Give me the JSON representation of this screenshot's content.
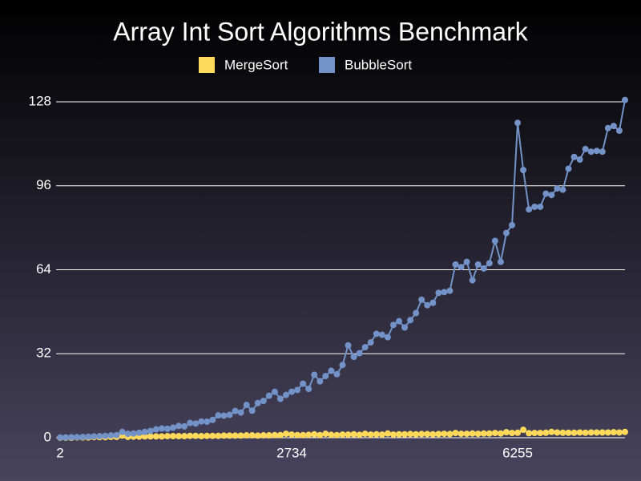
{
  "chart_data": {
    "type": "line",
    "title": "Array Int Sort Algorithms Benchmark",
    "categories": [
      "2",
      null,
      null,
      null,
      null,
      null,
      null,
      null,
      null,
      null,
      null,
      null,
      null,
      null,
      null,
      null,
      null,
      null,
      null,
      null,
      null,
      null,
      null,
      null,
      null,
      null,
      null,
      null,
      null,
      null,
      null,
      null,
      null,
      null,
      null,
      null,
      null,
      null,
      null,
      null,
      null,
      "2734",
      null,
      null,
      null,
      null,
      null,
      null,
      null,
      null,
      null,
      null,
      null,
      null,
      null,
      null,
      null,
      null,
      null,
      null,
      null,
      null,
      null,
      null,
      null,
      null,
      null,
      null,
      null,
      null,
      null,
      null,
      null,
      null,
      null,
      null,
      null,
      null,
      null,
      null,
      null,
      "6255",
      null,
      null,
      null,
      null,
      null,
      null,
      null,
      null,
      null,
      null,
      null,
      null,
      null,
      null,
      null,
      null,
      null,
      null,
      null
    ],
    "series": [
      {
        "name": "MergeSort",
        "color": "#ffd95a",
        "values": [
          0,
          0,
          0,
          0.1,
          0.1,
          0.1,
          0.2,
          0.2,
          0.2,
          0.3,
          0.3,
          0.8,
          0.3,
          0.4,
          0.4,
          0.5,
          0.5,
          0.5,
          0.5,
          0.6,
          0.6,
          0.6,
          0.6,
          0.7,
          0.7,
          0.6,
          0.7,
          0.7,
          0.7,
          0.8,
          0.8,
          0.8,
          0.8,
          0.9,
          0.9,
          0.8,
          0.9,
          0.9,
          1,
          1,
          1.5,
          1.2,
          1,
          1,
          1.1,
          1.3,
          1,
          1.5,
          1.1,
          1,
          1.2,
          1.2,
          1.3,
          1.1,
          1.5,
          1.2,
          1.3,
          1.2,
          1.6,
          1.2,
          1.3,
          1.3,
          1.4,
          1.3,
          1.4,
          1.4,
          1.3,
          1.4,
          1.5,
          1.4,
          1.8,
          1.5,
          1.5,
          1.6,
          1.5,
          1.6,
          1.6,
          1.8,
          1.6,
          2.1,
          1.8,
          1.9,
          3,
          1.7,
          1.8,
          1.8,
          1.9,
          2.2,
          2,
          1.9,
          1.9,
          1.9,
          2,
          1.9,
          2,
          2,
          2,
          2,
          2.1,
          2,
          2.2
        ]
      },
      {
        "name": "BubbleSort",
        "color": "#7393c8",
        "values": [
          0.1,
          0.1,
          0.2,
          0.2,
          0.3,
          0.4,
          0.5,
          0.6,
          0.7,
          0.9,
          1,
          2.2,
          1.5,
          1.6,
          1.9,
          2.2,
          2.6,
          3.2,
          3.5,
          3.4,
          3.8,
          4.5,
          4.3,
          5.6,
          5.4,
          6.2,
          6.1,
          6.8,
          8.5,
          8.4,
          8.7,
          10.2,
          9.6,
          12.5,
          10.3,
          13.2,
          14,
          16,
          17.5,
          14.8,
          16.3,
          17.5,
          18.2,
          20.6,
          18.6,
          24,
          21.5,
          23.5,
          25.5,
          24.2,
          27.7,
          35.2,
          30.8,
          32.2,
          34.5,
          36.3,
          39.6,
          39.2,
          38.3,
          43,
          44.4,
          42,
          44.8,
          47.5,
          52.6,
          50.5,
          51.4,
          55.2,
          55.5,
          56,
          66,
          65,
          67,
          60,
          66,
          64.5,
          66.5,
          75,
          67,
          78,
          81,
          120,
          102,
          87,
          88,
          88,
          93,
          92.5,
          95,
          94.5,
          102.5,
          107,
          106,
          110,
          109,
          109.3,
          109,
          118,
          118.8,
          117,
          128.7
        ]
      }
    ],
    "ylim": [
      0,
      128
    ],
    "yticks": [
      0,
      32,
      64,
      96,
      128
    ],
    "grid": true
  }
}
